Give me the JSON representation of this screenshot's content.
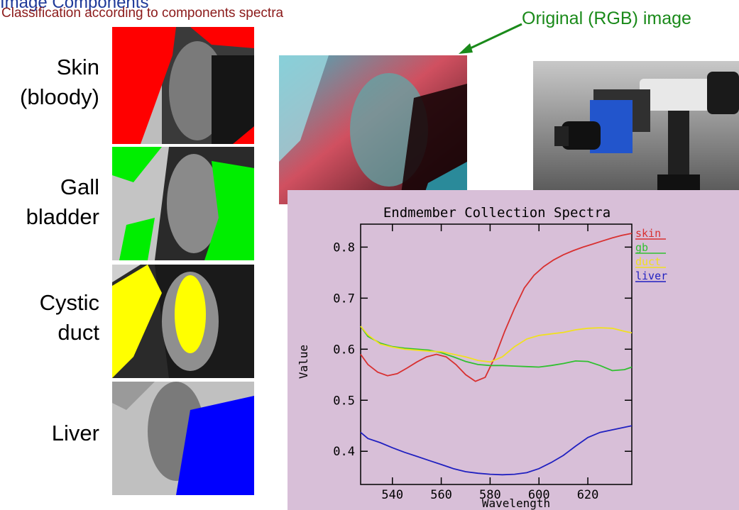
{
  "header": {
    "top_cut_text": "Image Components",
    "subtitle": "Classification according to components spectra",
    "original_label": "Original (RGB) image"
  },
  "rows": [
    {
      "label_line1": "Skin",
      "label_line2": "(bloody)",
      "overlay_color": "#ff0000"
    },
    {
      "label_line1": "Gall",
      "label_line2": "bladder",
      "overlay_color": "#00ee00"
    },
    {
      "label_line1": "Cystic",
      "label_line2": "duct",
      "overlay_color": "#ffff00"
    },
    {
      "label_line1": "Liver",
      "label_line2": "",
      "overlay_color": "#0000ff"
    }
  ],
  "colors": {
    "chart_background": "#d8bfd8",
    "header_blue": "#1f3a99",
    "subtitle_red": "#8b1a1a",
    "label_green": "#1a8a1a"
  },
  "chart_data": {
    "type": "line",
    "title": "Endmember Collection Spectra",
    "xlabel": "Wavelength",
    "ylabel": "Value",
    "xlim": [
      527,
      638
    ],
    "ylim": [
      0.335,
      0.845
    ],
    "xticks": [
      540,
      560,
      580,
      600,
      620
    ],
    "yticks": [
      0.4,
      0.5,
      0.6,
      0.7,
      0.8
    ],
    "ytick_labels": [
      "0.4",
      "0.5",
      "0.6",
      "0.7",
      "0.8"
    ],
    "legend_position": "right",
    "series": [
      {
        "name": "skin",
        "color": "#d83030",
        "x": [
          527,
          530,
          534,
          538,
          542,
          546,
          550,
          554,
          558,
          562,
          566,
          570,
          574,
          578,
          582,
          586,
          590,
          594,
          598,
          602,
          606,
          610,
          614,
          618,
          622,
          626,
          630,
          634,
          638
        ],
        "y": [
          0.59,
          0.57,
          0.555,
          0.548,
          0.552,
          0.563,
          0.575,
          0.585,
          0.59,
          0.585,
          0.57,
          0.55,
          0.537,
          0.545,
          0.585,
          0.635,
          0.68,
          0.72,
          0.745,
          0.762,
          0.775,
          0.785,
          0.793,
          0.8,
          0.806,
          0.812,
          0.818,
          0.823,
          0.827
        ]
      },
      {
        "name": "gb",
        "color": "#30c030",
        "x": [
          527,
          530,
          535,
          540,
          545,
          550,
          555,
          560,
          565,
          570,
          575,
          580,
          585,
          590,
          595,
          600,
          605,
          610,
          615,
          620,
          625,
          630,
          635,
          638
        ],
        "y": [
          0.645,
          0.625,
          0.612,
          0.605,
          0.602,
          0.6,
          0.598,
          0.593,
          0.585,
          0.576,
          0.57,
          0.568,
          0.568,
          0.567,
          0.566,
          0.565,
          0.568,
          0.572,
          0.577,
          0.576,
          0.568,
          0.558,
          0.56,
          0.565
        ]
      },
      {
        "name": "duct",
        "color": "#f0e020",
        "x": [
          527,
          530,
          535,
          540,
          545,
          550,
          555,
          560,
          565,
          570,
          575,
          580,
          585,
          590,
          595,
          600,
          605,
          610,
          615,
          620,
          625,
          630,
          635,
          638
        ],
        "y": [
          0.645,
          0.628,
          0.61,
          0.604,
          0.6,
          0.598,
          0.596,
          0.595,
          0.59,
          0.585,
          0.578,
          0.575,
          0.585,
          0.605,
          0.62,
          0.627,
          0.63,
          0.633,
          0.638,
          0.641,
          0.642,
          0.641,
          0.635,
          0.632
        ]
      },
      {
        "name": "liver",
        "color": "#2020c0",
        "x": [
          527,
          530,
          535,
          540,
          545,
          550,
          555,
          560,
          565,
          570,
          575,
          580,
          585,
          590,
          595,
          600,
          605,
          610,
          615,
          620,
          625,
          630,
          635,
          638
        ],
        "y": [
          0.437,
          0.425,
          0.417,
          0.407,
          0.398,
          0.39,
          0.382,
          0.374,
          0.366,
          0.36,
          0.357,
          0.355,
          0.354,
          0.355,
          0.358,
          0.366,
          0.378,
          0.392,
          0.41,
          0.427,
          0.437,
          0.442,
          0.447,
          0.45
        ]
      }
    ]
  }
}
